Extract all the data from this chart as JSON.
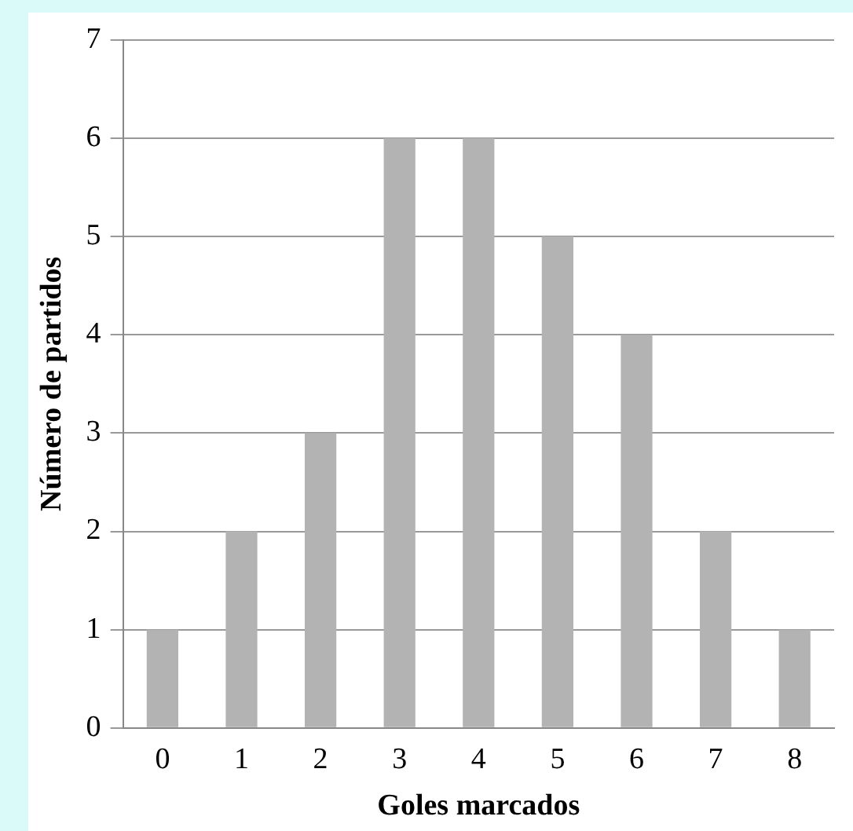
{
  "chart_data": {
    "type": "bar",
    "xlabel": "Goles marcados",
    "ylabel": "Número de partidos",
    "categories": [
      "0",
      "1",
      "2",
      "3",
      "4",
      "5",
      "6",
      "7",
      "8"
    ],
    "values": [
      1,
      2,
      3,
      6,
      6,
      5,
      4,
      2,
      1
    ],
    "color": "#b3b3b3",
    "ylim": [
      0,
      7
    ],
    "yticks": [
      0,
      1,
      2,
      3,
      4,
      5,
      6,
      7
    ],
    "grid": "y",
    "legend": false
  }
}
